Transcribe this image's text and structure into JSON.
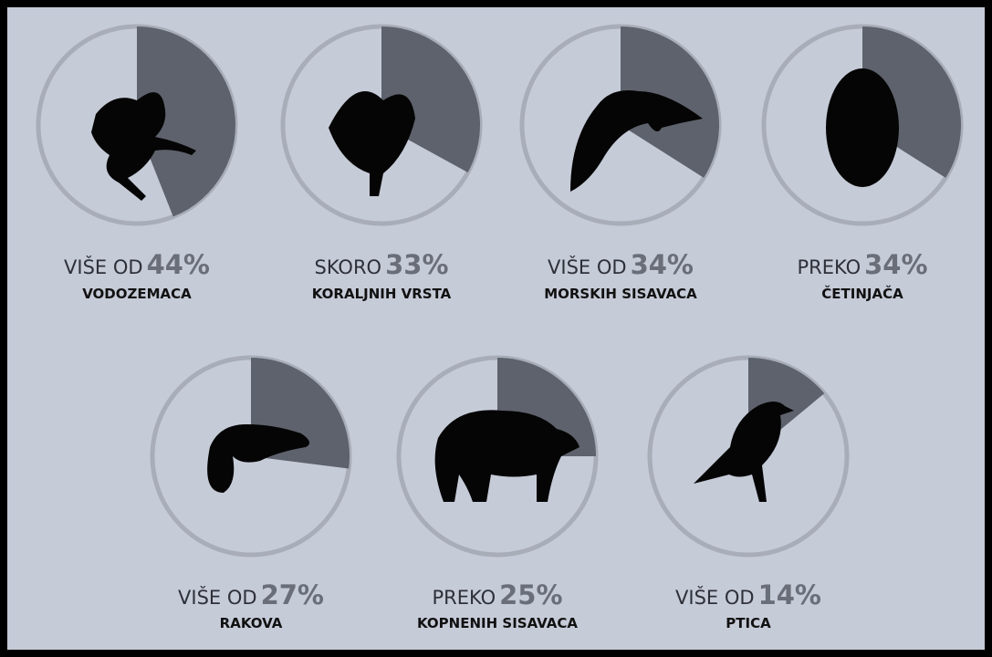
{
  "chart_data": {
    "type": "pie",
    "items": [
      {
        "prefix": "VIŠE OD",
        "value": 44,
        "value_label": "44%",
        "label": "VODOZEMACA"
      },
      {
        "prefix": "SKORO",
        "value": 33,
        "value_label": "33%",
        "label": "KORALJNIH VRSTA"
      },
      {
        "prefix": "VIŠE OD",
        "value": 34,
        "value_label": "34%",
        "label": "MORSKIH SISAVACA"
      },
      {
        "prefix": "PREKO",
        "value": 34,
        "value_label": "34%",
        "label": "ČETINJAČA"
      },
      {
        "prefix": "VIŠE OD",
        "value": 27,
        "value_label": "27%",
        "label": "RAKOVA"
      },
      {
        "prefix": "PREKO",
        "value": 25,
        "value_label": "25%",
        "label": "KOPNENIH SISAVACA"
      },
      {
        "prefix": "VIŠE OD",
        "value": 14,
        "value_label": "14%",
        "label": "PTICA"
      }
    ],
    "ring_color": "#a8adb8",
    "wedge_color": "#5e626c"
  }
}
